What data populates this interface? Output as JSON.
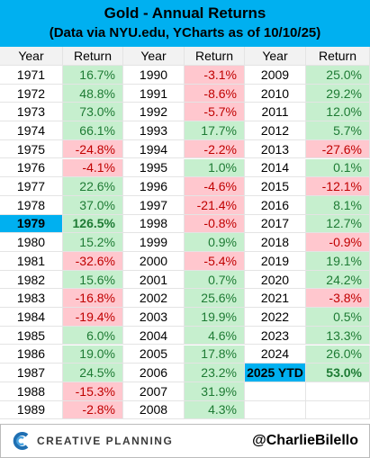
{
  "header": {
    "title": "Gold - Annual Returns",
    "subtitle": "(Data via NYU.edu, YCharts as of 10/10/25)"
  },
  "table": {
    "column_headers": [
      "Year",
      "Return"
    ],
    "groups": [
      {
        "rows": [
          {
            "year": "1971",
            "return": "16.7%"
          },
          {
            "year": "1972",
            "return": "48.8%"
          },
          {
            "year": "1973",
            "return": "73.0%"
          },
          {
            "year": "1974",
            "return": "66.1%"
          },
          {
            "year": "1975",
            "return": "-24.8%"
          },
          {
            "year": "1976",
            "return": "-4.1%"
          },
          {
            "year": "1977",
            "return": "22.6%"
          },
          {
            "year": "1978",
            "return": "37.0%"
          },
          {
            "year": "1979",
            "return": "126.5%",
            "highlight": true
          },
          {
            "year": "1980",
            "return": "15.2%"
          },
          {
            "year": "1981",
            "return": "-32.6%"
          },
          {
            "year": "1982",
            "return": "15.6%"
          },
          {
            "year": "1983",
            "return": "-16.8%"
          },
          {
            "year": "1984",
            "return": "-19.4%"
          },
          {
            "year": "1985",
            "return": "6.0%"
          },
          {
            "year": "1986",
            "return": "19.0%"
          },
          {
            "year": "1987",
            "return": "24.5%"
          },
          {
            "year": "1988",
            "return": "-15.3%"
          },
          {
            "year": "1989",
            "return": "-2.8%"
          }
        ]
      },
      {
        "rows": [
          {
            "year": "1990",
            "return": "-3.1%"
          },
          {
            "year": "1991",
            "return": "-8.6%"
          },
          {
            "year": "1992",
            "return": "-5.7%"
          },
          {
            "year": "1993",
            "return": "17.7%"
          },
          {
            "year": "1994",
            "return": "-2.2%"
          },
          {
            "year": "1995",
            "return": "1.0%"
          },
          {
            "year": "1996",
            "return": "-4.6%"
          },
          {
            "year": "1997",
            "return": "-21.4%"
          },
          {
            "year": "1998",
            "return": "-0.8%"
          },
          {
            "year": "1999",
            "return": "0.9%"
          },
          {
            "year": "2000",
            "return": "-5.4%"
          },
          {
            "year": "2001",
            "return": "0.7%"
          },
          {
            "year": "2002",
            "return": "25.6%"
          },
          {
            "year": "2003",
            "return": "19.9%"
          },
          {
            "year": "2004",
            "return": "4.6%"
          },
          {
            "year": "2005",
            "return": "17.8%"
          },
          {
            "year": "2006",
            "return": "23.2%"
          },
          {
            "year": "2007",
            "return": "31.9%"
          },
          {
            "year": "2008",
            "return": "4.3%"
          }
        ]
      },
      {
        "rows": [
          {
            "year": "2009",
            "return": "25.0%"
          },
          {
            "year": "2010",
            "return": "29.2%"
          },
          {
            "year": "2011",
            "return": "12.0%"
          },
          {
            "year": "2012",
            "return": "5.7%"
          },
          {
            "year": "2013",
            "return": "-27.6%"
          },
          {
            "year": "2014",
            "return": "0.1%"
          },
          {
            "year": "2015",
            "return": "-12.1%"
          },
          {
            "year": "2016",
            "return": "8.1%"
          },
          {
            "year": "2017",
            "return": "12.7%"
          },
          {
            "year": "2018",
            "return": "-0.9%"
          },
          {
            "year": "2019",
            "return": "19.1%"
          },
          {
            "year": "2020",
            "return": "24.2%"
          },
          {
            "year": "2021",
            "return": "-3.8%"
          },
          {
            "year": "2022",
            "return": "0.5%"
          },
          {
            "year": "2023",
            "return": "13.3%"
          },
          {
            "year": "2024",
            "return": "26.0%"
          },
          {
            "year": "2025 YTD",
            "return": "53.0%",
            "highlight": true
          }
        ]
      }
    ]
  },
  "footer": {
    "brand": "CREATIVE PLANNING",
    "handle": "@CharlieBilello"
  }
}
